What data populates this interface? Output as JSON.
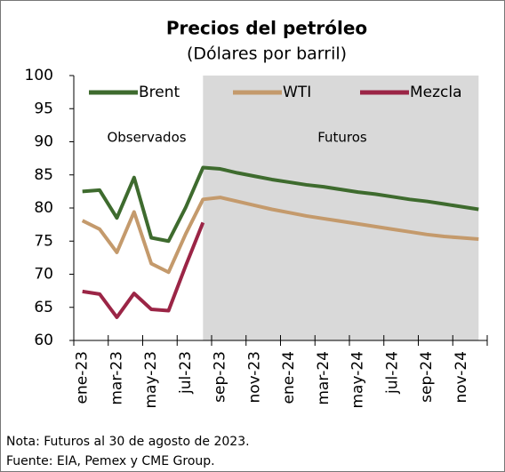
{
  "chart_data": {
    "type": "line",
    "title": "Precios del petróleo",
    "subtitle": "(Dólares por barril)",
    "categories": [
      "ene-23",
      null,
      "mar-23",
      null,
      "may-23",
      null,
      "jul-23",
      null,
      "sep-23",
      null,
      "nov-23",
      null,
      "ene-24",
      null,
      "mar-24",
      null,
      "may-24",
      null,
      "jul-24",
      null,
      "sep-24",
      null,
      "nov-24",
      null
    ],
    "series": [
      {
        "name": "Brent",
        "color": "#3e6b2e",
        "values": [
          82.5,
          82.7,
          78.5,
          84.6,
          75.5,
          75.0,
          80.1,
          86.1,
          85.9,
          85.3,
          84.8,
          84.3,
          83.9,
          83.5,
          83.2,
          82.8,
          82.4,
          82.1,
          81.7,
          81.3,
          81.0,
          80.6,
          80.2,
          79.8
        ]
      },
      {
        "name": "WTI",
        "color": "#c49a6c",
        "values": [
          78.1,
          76.8,
          73.3,
          79.4,
          71.6,
          70.3,
          76.1,
          81.3,
          81.6,
          81.0,
          80.4,
          79.8,
          79.3,
          78.8,
          78.4,
          78.0,
          77.6,
          77.2,
          76.8,
          76.4,
          76.0,
          75.7,
          75.5,
          75.3
        ]
      },
      {
        "name": "Mezcla",
        "color": "#9b2546",
        "values": [
          67.4,
          67.0,
          63.5,
          67.1,
          64.7,
          64.5,
          71.3,
          77.8,
          null,
          null,
          null,
          null,
          null,
          null,
          null,
          null,
          null,
          null,
          null,
          null,
          null,
          null,
          null,
          null
        ]
      }
    ],
    "ylim": [
      60,
      100
    ],
    "yticks": [
      60,
      65,
      70,
      75,
      80,
      85,
      90,
      95,
      100
    ],
    "annotations": [
      "Observados",
      "Futuros"
    ],
    "notes": [
      "Nota: Futuros al 30 de agosto de 2023.",
      "Fuente: EIA, Pemex y CME Group."
    ]
  }
}
